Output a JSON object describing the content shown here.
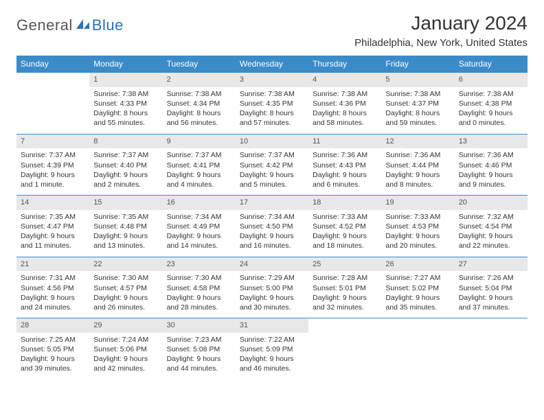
{
  "logo": {
    "part1": "General",
    "part2": "Blue"
  },
  "title": "January 2024",
  "location": "Philadelphia, New York, United States",
  "colors": {
    "header_bg": "#3b8bc8",
    "header_text": "#ffffff",
    "daynum_bg": "#e8e8e8",
    "border": "#3b8bc8",
    "logo_blue": "#2a72b5",
    "text": "#333333"
  },
  "day_headers": [
    "Sunday",
    "Monday",
    "Tuesday",
    "Wednesday",
    "Thursday",
    "Friday",
    "Saturday"
  ],
  "weeks": [
    [
      {
        "num": "",
        "sunrise": "",
        "sunset": "",
        "daylight": ""
      },
      {
        "num": "1",
        "sunrise": "Sunrise: 7:38 AM",
        "sunset": "Sunset: 4:33 PM",
        "daylight": "Daylight: 8 hours and 55 minutes."
      },
      {
        "num": "2",
        "sunrise": "Sunrise: 7:38 AM",
        "sunset": "Sunset: 4:34 PM",
        "daylight": "Daylight: 8 hours and 56 minutes."
      },
      {
        "num": "3",
        "sunrise": "Sunrise: 7:38 AM",
        "sunset": "Sunset: 4:35 PM",
        "daylight": "Daylight: 8 hours and 57 minutes."
      },
      {
        "num": "4",
        "sunrise": "Sunrise: 7:38 AM",
        "sunset": "Sunset: 4:36 PM",
        "daylight": "Daylight: 8 hours and 58 minutes."
      },
      {
        "num": "5",
        "sunrise": "Sunrise: 7:38 AM",
        "sunset": "Sunset: 4:37 PM",
        "daylight": "Daylight: 8 hours and 59 minutes."
      },
      {
        "num": "6",
        "sunrise": "Sunrise: 7:38 AM",
        "sunset": "Sunset: 4:38 PM",
        "daylight": "Daylight: 9 hours and 0 minutes."
      }
    ],
    [
      {
        "num": "7",
        "sunrise": "Sunrise: 7:37 AM",
        "sunset": "Sunset: 4:39 PM",
        "daylight": "Daylight: 9 hours and 1 minute."
      },
      {
        "num": "8",
        "sunrise": "Sunrise: 7:37 AM",
        "sunset": "Sunset: 4:40 PM",
        "daylight": "Daylight: 9 hours and 2 minutes."
      },
      {
        "num": "9",
        "sunrise": "Sunrise: 7:37 AM",
        "sunset": "Sunset: 4:41 PM",
        "daylight": "Daylight: 9 hours and 4 minutes."
      },
      {
        "num": "10",
        "sunrise": "Sunrise: 7:37 AM",
        "sunset": "Sunset: 4:42 PM",
        "daylight": "Daylight: 9 hours and 5 minutes."
      },
      {
        "num": "11",
        "sunrise": "Sunrise: 7:36 AM",
        "sunset": "Sunset: 4:43 PM",
        "daylight": "Daylight: 9 hours and 6 minutes."
      },
      {
        "num": "12",
        "sunrise": "Sunrise: 7:36 AM",
        "sunset": "Sunset: 4:44 PM",
        "daylight": "Daylight: 9 hours and 8 minutes."
      },
      {
        "num": "13",
        "sunrise": "Sunrise: 7:36 AM",
        "sunset": "Sunset: 4:46 PM",
        "daylight": "Daylight: 9 hours and 9 minutes."
      }
    ],
    [
      {
        "num": "14",
        "sunrise": "Sunrise: 7:35 AM",
        "sunset": "Sunset: 4:47 PM",
        "daylight": "Daylight: 9 hours and 11 minutes."
      },
      {
        "num": "15",
        "sunrise": "Sunrise: 7:35 AM",
        "sunset": "Sunset: 4:48 PM",
        "daylight": "Daylight: 9 hours and 13 minutes."
      },
      {
        "num": "16",
        "sunrise": "Sunrise: 7:34 AM",
        "sunset": "Sunset: 4:49 PM",
        "daylight": "Daylight: 9 hours and 14 minutes."
      },
      {
        "num": "17",
        "sunrise": "Sunrise: 7:34 AM",
        "sunset": "Sunset: 4:50 PM",
        "daylight": "Daylight: 9 hours and 16 minutes."
      },
      {
        "num": "18",
        "sunrise": "Sunrise: 7:33 AM",
        "sunset": "Sunset: 4:52 PM",
        "daylight": "Daylight: 9 hours and 18 minutes."
      },
      {
        "num": "19",
        "sunrise": "Sunrise: 7:33 AM",
        "sunset": "Sunset: 4:53 PM",
        "daylight": "Daylight: 9 hours and 20 minutes."
      },
      {
        "num": "20",
        "sunrise": "Sunrise: 7:32 AM",
        "sunset": "Sunset: 4:54 PM",
        "daylight": "Daylight: 9 hours and 22 minutes."
      }
    ],
    [
      {
        "num": "21",
        "sunrise": "Sunrise: 7:31 AM",
        "sunset": "Sunset: 4:56 PM",
        "daylight": "Daylight: 9 hours and 24 minutes."
      },
      {
        "num": "22",
        "sunrise": "Sunrise: 7:30 AM",
        "sunset": "Sunset: 4:57 PM",
        "daylight": "Daylight: 9 hours and 26 minutes."
      },
      {
        "num": "23",
        "sunrise": "Sunrise: 7:30 AM",
        "sunset": "Sunset: 4:58 PM",
        "daylight": "Daylight: 9 hours and 28 minutes."
      },
      {
        "num": "24",
        "sunrise": "Sunrise: 7:29 AM",
        "sunset": "Sunset: 5:00 PM",
        "daylight": "Daylight: 9 hours and 30 minutes."
      },
      {
        "num": "25",
        "sunrise": "Sunrise: 7:28 AM",
        "sunset": "Sunset: 5:01 PM",
        "daylight": "Daylight: 9 hours and 32 minutes."
      },
      {
        "num": "26",
        "sunrise": "Sunrise: 7:27 AM",
        "sunset": "Sunset: 5:02 PM",
        "daylight": "Daylight: 9 hours and 35 minutes."
      },
      {
        "num": "27",
        "sunrise": "Sunrise: 7:26 AM",
        "sunset": "Sunset: 5:04 PM",
        "daylight": "Daylight: 9 hours and 37 minutes."
      }
    ],
    [
      {
        "num": "28",
        "sunrise": "Sunrise: 7:25 AM",
        "sunset": "Sunset: 5:05 PM",
        "daylight": "Daylight: 9 hours and 39 minutes."
      },
      {
        "num": "29",
        "sunrise": "Sunrise: 7:24 AM",
        "sunset": "Sunset: 5:06 PM",
        "daylight": "Daylight: 9 hours and 42 minutes."
      },
      {
        "num": "30",
        "sunrise": "Sunrise: 7:23 AM",
        "sunset": "Sunset: 5:08 PM",
        "daylight": "Daylight: 9 hours and 44 minutes."
      },
      {
        "num": "31",
        "sunrise": "Sunrise: 7:22 AM",
        "sunset": "Sunset: 5:09 PM",
        "daylight": "Daylight: 9 hours and 46 minutes."
      },
      {
        "num": "",
        "sunrise": "",
        "sunset": "",
        "daylight": ""
      },
      {
        "num": "",
        "sunrise": "",
        "sunset": "",
        "daylight": ""
      },
      {
        "num": "",
        "sunrise": "",
        "sunset": "",
        "daylight": ""
      }
    ]
  ]
}
